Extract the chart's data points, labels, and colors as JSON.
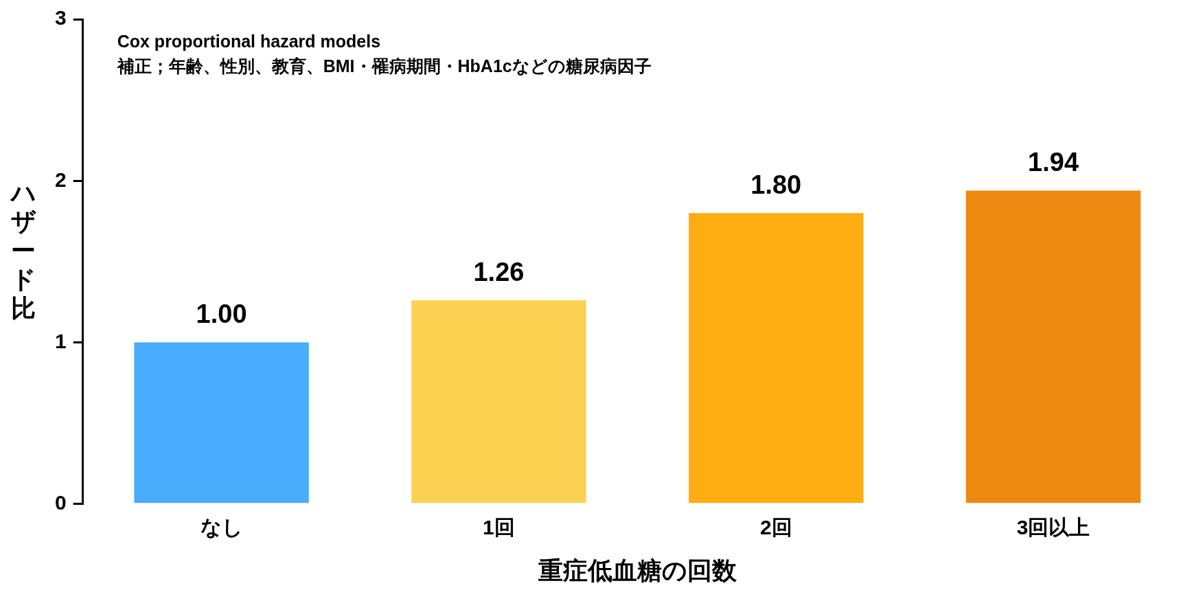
{
  "chart_data": {
    "type": "bar",
    "categories": [
      "なし",
      "1回",
      "2回",
      "3回以上"
    ],
    "values": [
      1.0,
      1.26,
      1.8,
      1.94
    ],
    "colors": [
      "#49acfc",
      "#fcd050",
      "#ffad10",
      "#ee8a12"
    ],
    "xlabel": "重症低血糖の回数",
    "ylabel": "ハザード比",
    "ylim": [
      0,
      3
    ],
    "yticks": [
      0,
      1,
      2,
      3
    ],
    "annotations": [
      "Cox proportional hazard models",
      "補正；年齢、性別、教育、BMI・罹病期間・HbA1cなどの糖尿病因子"
    ],
    "value_labels": [
      "1.00",
      "1.26",
      "1.80",
      "1.94"
    ],
    "grid": false,
    "legend": false
  }
}
